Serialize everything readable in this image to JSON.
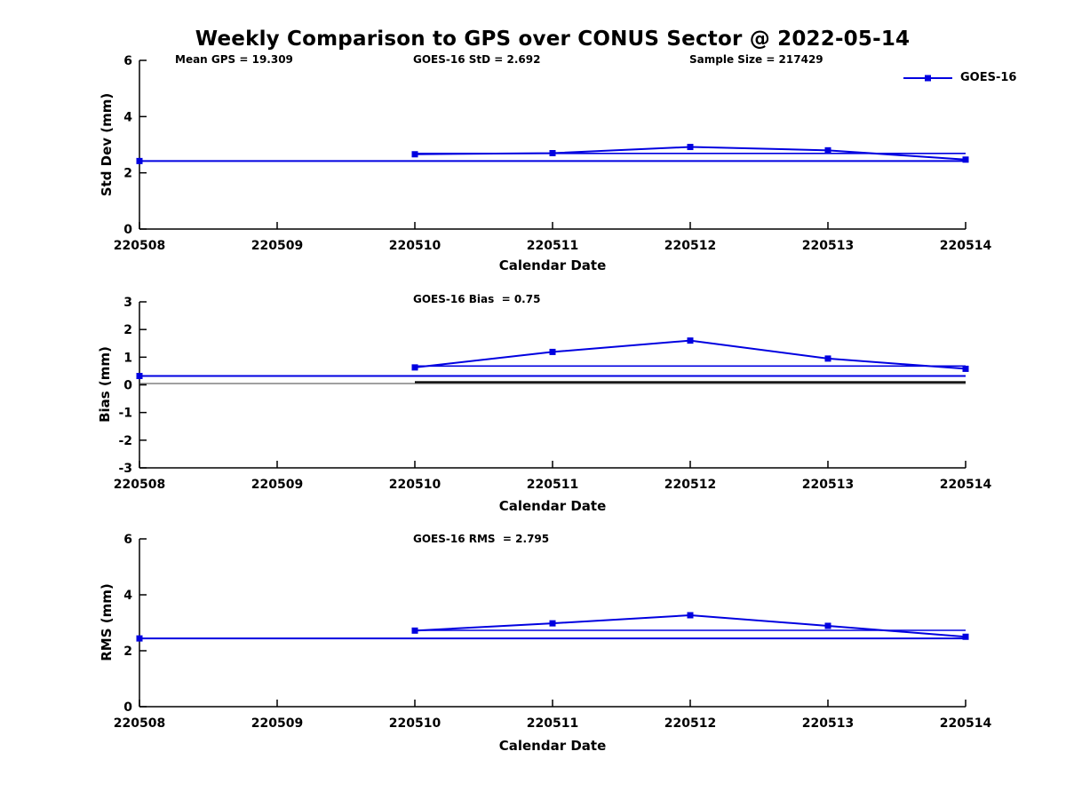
{
  "title": "Weekly Comparison to GPS over CONUS Sector @ 2022-05-14",
  "colors": {
    "series": "#0000E0",
    "axis": "#000000",
    "thin_ref": "#404040",
    "black_ref": "#000000"
  },
  "legend": {
    "label": "GOES-16"
  },
  "header_annotations": [
    {
      "text": "Mean GPS = 19.309"
    },
    {
      "text": "GOES-16 StD = 2.692"
    },
    {
      "text": "Sample Size = 217429"
    }
  ],
  "chart_data": [
    {
      "type": "line",
      "ylabel": "Std Dev (mm)",
      "xlabel": "Calendar Date",
      "x_ticks": [
        "220508",
        "220509",
        "220510",
        "220511",
        "220512",
        "220513",
        "220514"
      ],
      "ylim": [
        0,
        6
      ],
      "yticks": [
        0,
        2,
        4,
        6
      ],
      "legend_position": "top-right-outside",
      "series": [
        {
          "name": "GOES-16",
          "marker": "square",
          "values": [
            2.42,
            null,
            2.66,
            2.7,
            2.92,
            2.8,
            2.47
          ]
        }
      ],
      "ref_lines": [
        {
          "value": 2.42,
          "from": "220508",
          "to": "220514",
          "width": 2,
          "color": "series"
        },
        {
          "value": 2.69,
          "from": "220510",
          "to": "220514",
          "width": 1.6,
          "color": "series"
        }
      ]
    },
    {
      "type": "line",
      "ylabel": "Bias (mm)",
      "xlabel": "Calendar Date",
      "annotation": {
        "text": "GOES-16 Bias  = 0.75"
      },
      "x_ticks": [
        "220508",
        "220509",
        "220510",
        "220511",
        "220512",
        "220513",
        "220514"
      ],
      "ylim": [
        -3,
        3
      ],
      "yticks": [
        -3,
        -2,
        -1,
        0,
        1,
        2,
        3
      ],
      "series": [
        {
          "name": "GOES-16",
          "marker": "square",
          "values": [
            0.32,
            null,
            0.63,
            1.19,
            1.6,
            0.95,
            0.58
          ]
        }
      ],
      "ref_lines": [
        {
          "value": 0.32,
          "from": "220508",
          "to": "220514",
          "width": 2,
          "color": "series"
        },
        {
          "value": 0.68,
          "from": "220510",
          "to": "220514",
          "width": 1.6,
          "color": "series"
        },
        {
          "value": 0.05,
          "from": "220508",
          "to": "220514",
          "width": 1,
          "color": "thin"
        },
        {
          "value": 0.1,
          "from": "220510",
          "to": "220514",
          "width": 2,
          "color": "black"
        }
      ]
    },
    {
      "type": "line",
      "ylabel": "RMS (mm)",
      "xlabel": "Calendar Date",
      "annotation": {
        "text": "GOES-16 RMS  = 2.795"
      },
      "x_ticks": [
        "220508",
        "220509",
        "220510",
        "220511",
        "220512",
        "220513",
        "220514"
      ],
      "ylim": [
        0,
        6
      ],
      "yticks": [
        0,
        2,
        4,
        6
      ],
      "series": [
        {
          "name": "GOES-16",
          "marker": "square",
          "values": [
            2.44,
            null,
            2.72,
            2.98,
            3.27,
            2.89,
            2.5
          ]
        }
      ],
      "ref_lines": [
        {
          "value": 2.44,
          "from": "220508",
          "to": "220514",
          "width": 2,
          "color": "series"
        },
        {
          "value": 2.73,
          "from": "220510",
          "to": "220514",
          "width": 1.6,
          "color": "series"
        }
      ]
    }
  ]
}
